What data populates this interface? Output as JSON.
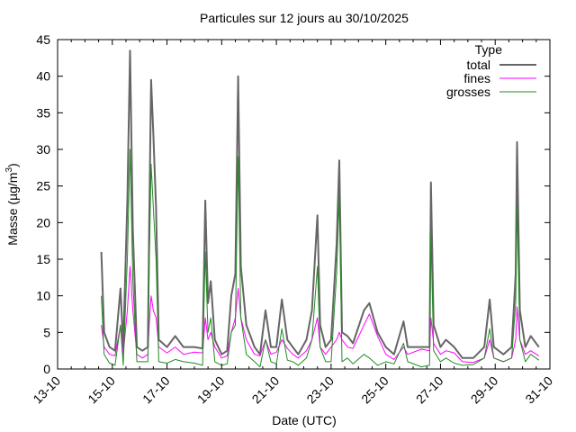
{
  "chart_data": {
    "type": "line",
    "title": "Particules sur 12 jours au 30/10/2025",
    "xlabel": "Date (UTC)",
    "ylabel": "Masse (µg/m",
    "ylabel_sup": "3",
    "ylabel_end": ")",
    "xlim": [
      13,
      31
    ],
    "ylim": [
      0,
      45
    ],
    "yticks": [
      0,
      5,
      10,
      15,
      20,
      25,
      30,
      35,
      40,
      45
    ],
    "xticks": [
      13,
      15,
      17,
      19,
      21,
      23,
      25,
      27,
      29,
      31
    ],
    "xtick_labels": [
      "13-10",
      "15-10",
      "17-10",
      "19-10",
      "21-10",
      "23-10",
      "25-10",
      "27-10",
      "29-10",
      "31-10"
    ],
    "grid": false,
    "legend": {
      "title": "Type",
      "placement": "top-right"
    },
    "x": [
      14.6,
      14.7,
      14.9,
      15.1,
      15.3,
      15.4,
      15.55,
      15.65,
      15.75,
      15.9,
      16.1,
      16.3,
      16.35,
      16.42,
      16.5,
      16.6,
      16.7,
      17.0,
      17.3,
      17.6,
      18.0,
      18.3,
      18.4,
      18.5,
      18.6,
      18.75,
      19.0,
      19.2,
      19.35,
      19.5,
      19.6,
      19.7,
      19.9,
      20.2,
      20.4,
      20.6,
      20.8,
      21.0,
      21.2,
      21.4,
      21.6,
      21.8,
      22.1,
      22.3,
      22.5,
      22.6,
      22.8,
      23.0,
      23.2,
      23.3,
      23.4,
      23.6,
      23.8,
      24.2,
      24.4,
      24.7,
      25.0,
      25.3,
      25.65,
      25.8,
      26.3,
      26.6,
      26.65,
      26.75,
      27.0,
      27.2,
      27.5,
      27.8,
      28.2,
      28.6,
      28.8,
      28.95,
      29.3,
      29.6,
      29.75,
      29.8,
      29.9,
      30.1,
      30.3,
      30.6
    ],
    "series": [
      {
        "name": "total",
        "color": "#666666",
        "values": [
          16,
          5,
          3,
          2.5,
          11,
          3,
          23,
          43.5,
          19,
          3,
          2.5,
          3,
          20,
          39.5,
          32,
          22,
          4,
          3,
          4.5,
          3,
          3,
          2.8,
          23,
          9,
          12,
          4,
          2,
          2.5,
          10,
          13,
          40,
          14,
          6,
          3,
          2,
          8,
          3,
          3,
          9.5,
          4,
          3,
          2,
          4,
          8,
          21,
          6,
          3,
          4,
          17,
          28.5,
          5,
          4.5,
          3.5,
          8,
          9,
          5,
          3,
          2,
          6.5,
          3,
          3,
          3,
          25.5,
          6,
          3,
          4,
          3,
          1.5,
          1.5,
          3,
          9.5,
          3,
          2,
          3,
          13,
          31,
          8,
          3,
          4.5,
          3
        ]
      },
      {
        "name": "fines",
        "color": "#ff00ff",
        "values": [
          6,
          3,
          2,
          1.8,
          6,
          2,
          8,
          14,
          8,
          2,
          1.5,
          2,
          6,
          10,
          8,
          7,
          3,
          2.2,
          3,
          2,
          2.3,
          2.2,
          7,
          4,
          5,
          3,
          1.5,
          1.8,
          5,
          7,
          11,
          7,
          4,
          2,
          1.8,
          4,
          2,
          2.3,
          4,
          2.8,
          2,
          1.5,
          2.5,
          4,
          7,
          3,
          2,
          3,
          4,
          5,
          4,
          3,
          2.8,
          6,
          7.5,
          4.5,
          2,
          1.3,
          3,
          2,
          2.7,
          2.5,
          7,
          3.5,
          2,
          2.5,
          2.2,
          1,
          0.9,
          1.5,
          4,
          1.5,
          1,
          1.5,
          4,
          8.5,
          4,
          2,
          2.5,
          1.8
        ]
      },
      {
        "name": "grosses",
        "color": "#228b22",
        "values": [
          10,
          2,
          0.8,
          0.5,
          6,
          0.5,
          15,
          30,
          12,
          1,
          1,
          1,
          14,
          28,
          22,
          15,
          1,
          0.8,
          1.3,
          1,
          0.8,
          0.5,
          16,
          5,
          7,
          1,
          0.5,
          0.7,
          5,
          6,
          29,
          7,
          2,
          1,
          0.3,
          4,
          1,
          0.7,
          5.5,
          1.2,
          1,
          0.5,
          1.5,
          4,
          14,
          3,
          1,
          1,
          13,
          23.5,
          1,
          1.5,
          0.7,
          2,
          1.5,
          0.5,
          1,
          0.7,
          3.5,
          1,
          0.3,
          0.5,
          18.5,
          2.5,
          1,
          1.5,
          0.8,
          0.5,
          0.6,
          1.5,
          5.5,
          1.5,
          1,
          1.5,
          9,
          22.5,
          4,
          1,
          2,
          1.2
        ]
      }
    ]
  }
}
